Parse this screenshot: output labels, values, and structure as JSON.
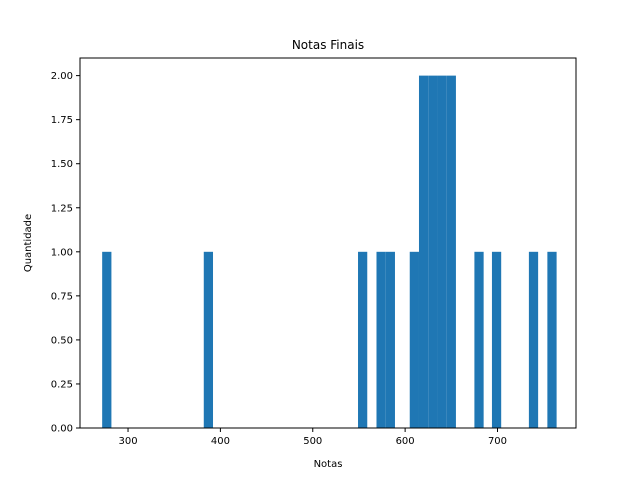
{
  "chart_data": {
    "type": "bar",
    "title": "Notas Finais",
    "xlabel": "Notas",
    "ylabel": "Quantidade",
    "xlim": [
      248,
      785
    ],
    "ylim": [
      0,
      2.1
    ],
    "grid": false,
    "bar_color": "#1f77b4",
    "bins": [
      {
        "x0": 272,
        "x1": 282,
        "count": 1
      },
      {
        "x0": 382,
        "x1": 392,
        "count": 1
      },
      {
        "x0": 549,
        "x1": 559,
        "count": 1
      },
      {
        "x0": 569,
        "x1": 579,
        "count": 1
      },
      {
        "x0": 579,
        "x1": 589,
        "count": 1
      },
      {
        "x0": 605,
        "x1": 615,
        "count": 1
      },
      {
        "x0": 615,
        "x1": 625,
        "count": 2
      },
      {
        "x0": 625,
        "x1": 635,
        "count": 2
      },
      {
        "x0": 635,
        "x1": 645,
        "count": 2
      },
      {
        "x0": 645,
        "x1": 655,
        "count": 2
      },
      {
        "x0": 675,
        "x1": 685,
        "count": 1
      },
      {
        "x0": 694,
        "x1": 704,
        "count": 1
      },
      {
        "x0": 734,
        "x1": 744,
        "count": 1
      },
      {
        "x0": 754,
        "x1": 764,
        "count": 1
      }
    ],
    "xticks": [
      {
        "value": 300,
        "label": "300"
      },
      {
        "value": 400,
        "label": "400"
      },
      {
        "value": 500,
        "label": "500"
      },
      {
        "value": 600,
        "label": "600"
      },
      {
        "value": 700,
        "label": "700"
      }
    ],
    "yticks": [
      {
        "value": 0,
        "label": "0.00"
      },
      {
        "value": 0.25,
        "label": "0.25"
      },
      {
        "value": 0.5,
        "label": "0.50"
      },
      {
        "value": 0.75,
        "label": "0.75"
      },
      {
        "value": 1.0,
        "label": "1.00"
      },
      {
        "value": 1.25,
        "label": "1.25"
      },
      {
        "value": 1.5,
        "label": "1.50"
      },
      {
        "value": 1.75,
        "label": "1.75"
      },
      {
        "value": 2.0,
        "label": "2.00"
      }
    ]
  }
}
